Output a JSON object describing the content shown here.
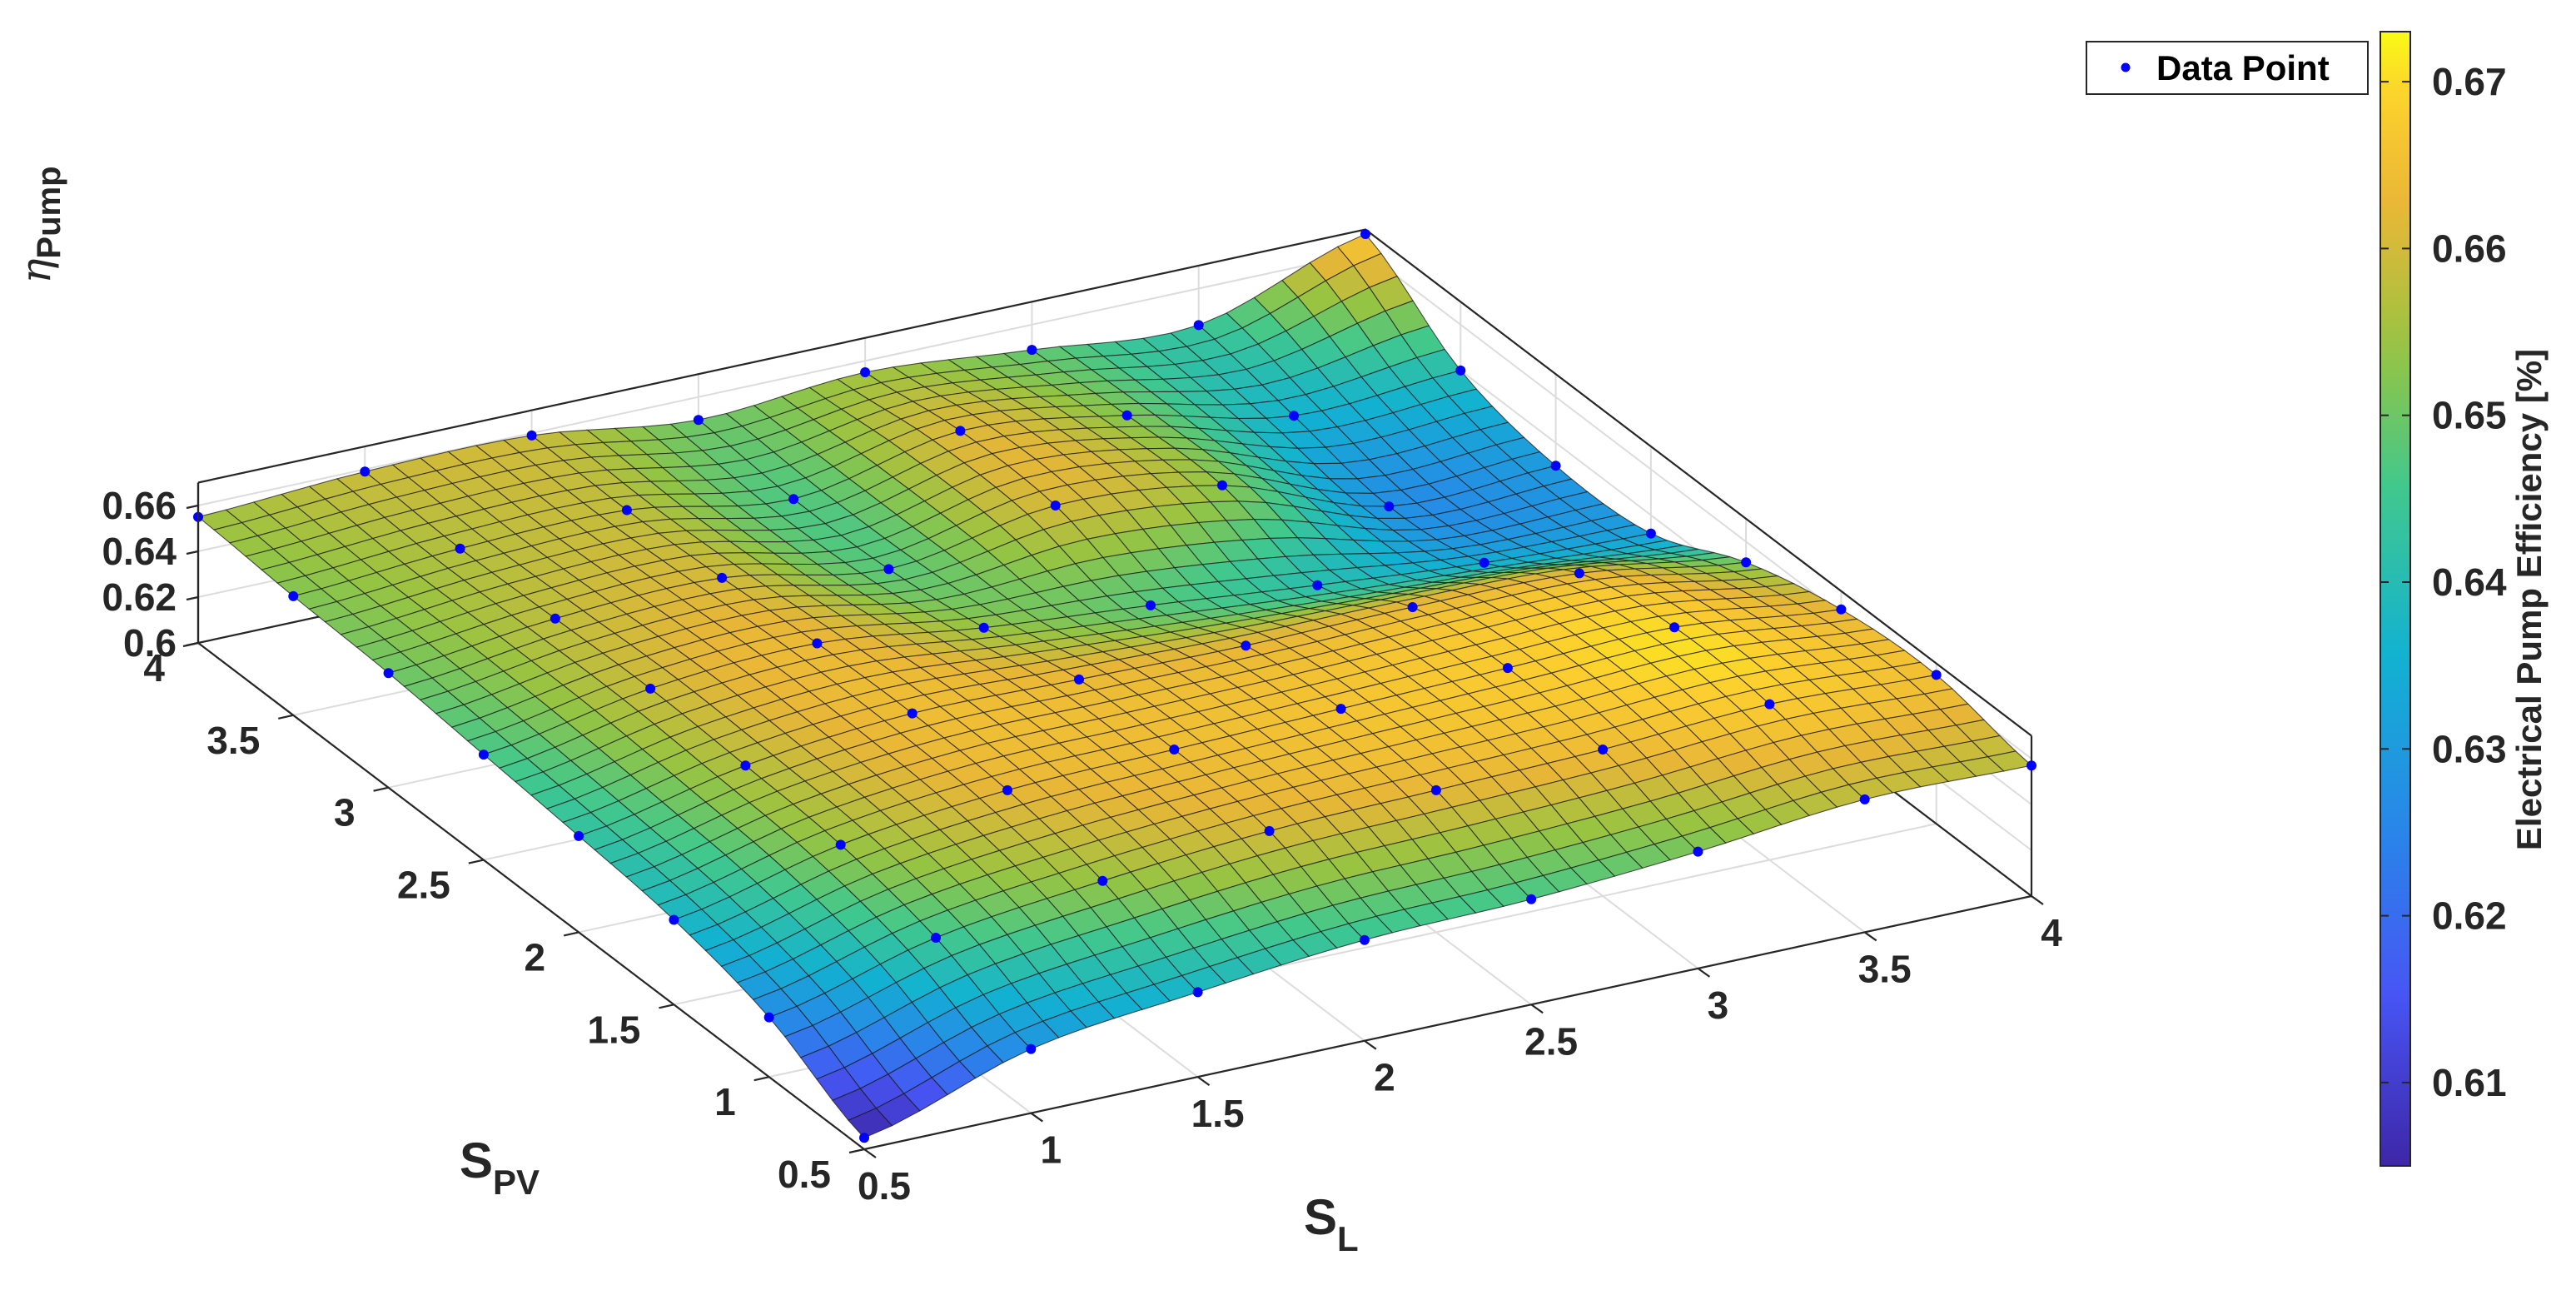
{
  "chart_data": {
    "type": "surface",
    "xlabel": "S",
    "xlabel_sub": "L",
    "ylabel": "S",
    "ylabel_sub": "PV",
    "zlabel_symbol": "η",
    "zlabel_sub": "Pump",
    "colorbar_label": "Electrical Pump Efficiency [%]",
    "legend": {
      "label": "Data Point",
      "placement": "top-right"
    },
    "grid": true,
    "colormap": "parula",
    "xlim": [
      0.5,
      4
    ],
    "ylim": [
      0.5,
      4
    ],
    "zlim": [
      0.6,
      0.67
    ],
    "clim": [
      0.605,
      0.673
    ],
    "x_ticks": [
      "0.5",
      "1",
      "1.5",
      "2",
      "2.5",
      "3",
      "3.5",
      "4"
    ],
    "y_ticks": [
      "0.5",
      "1",
      "1.5",
      "2",
      "2.5",
      "3",
      "3.5",
      "4"
    ],
    "z_ticks": [
      "0.6",
      "0.62",
      "0.64",
      "0.66"
    ],
    "colorbar_ticks": [
      "0.61",
      "0.62",
      "0.63",
      "0.64",
      "0.65",
      "0.66",
      "0.67"
    ],
    "x": [
      0.5,
      1,
      1.5,
      2,
      2.5,
      3,
      3.5,
      4
    ],
    "y": [
      0.5,
      1,
      1.5,
      2,
      2.5,
      3,
      3.5,
      4
    ],
    "z": [
      [
        0.605,
        0.628,
        0.637,
        0.644,
        0.646,
        0.651,
        0.658,
        0.657
      ],
      [
        0.626,
        0.645,
        0.654,
        0.66,
        0.662,
        0.664,
        0.668,
        0.665
      ],
      [
        0.637,
        0.654,
        0.662,
        0.664,
        0.666,
        0.668,
        0.67,
        0.662
      ],
      [
        0.642,
        0.657,
        0.664,
        0.663,
        0.662,
        0.663,
        0.662,
        0.651
      ],
      [
        0.646,
        0.659,
        0.663,
        0.654,
        0.648,
        0.641,
        0.635,
        0.632
      ],
      [
        0.65,
        0.658,
        0.66,
        0.648,
        0.66,
        0.653,
        0.628,
        0.63
      ],
      [
        0.652,
        0.657,
        0.658,
        0.647,
        0.661,
        0.652,
        0.636,
        0.64
      ],
      [
        0.655,
        0.659,
        0.659,
        0.65,
        0.655,
        0.649,
        0.644,
        0.668
      ]
    ]
  }
}
